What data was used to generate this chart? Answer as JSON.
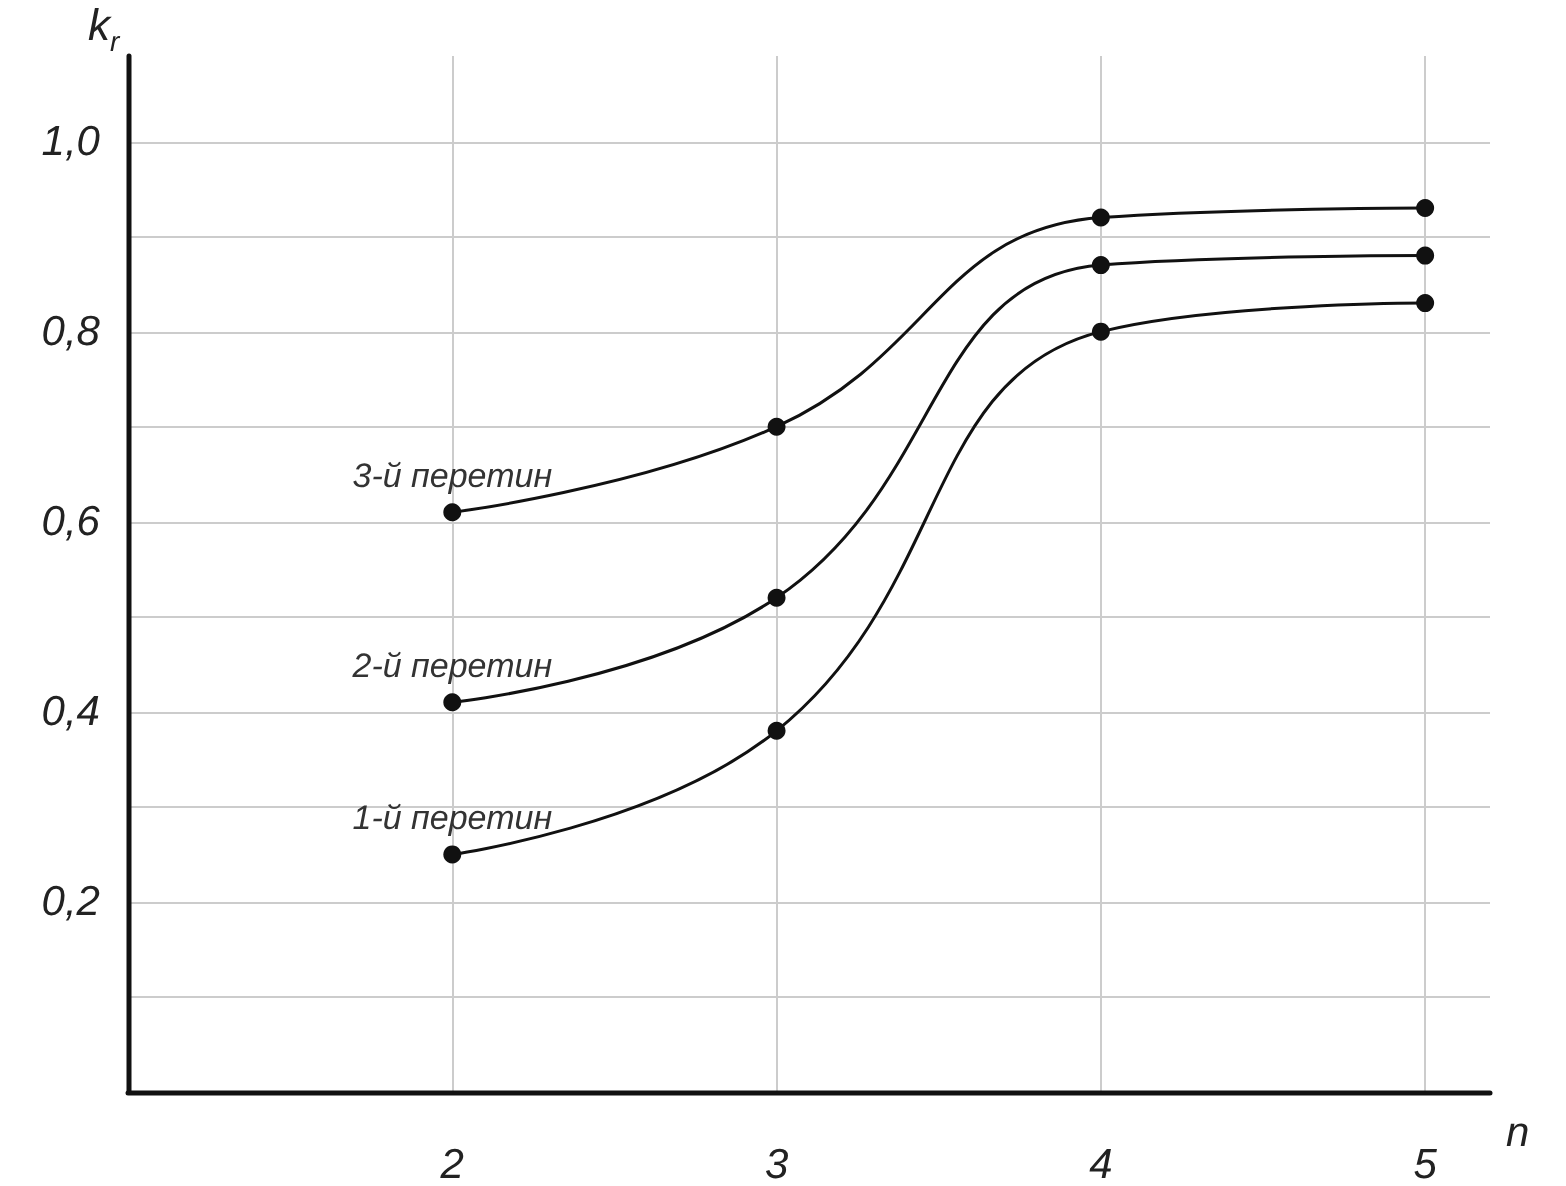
{
  "chart_data": {
    "type": "line",
    "xlabel": "n",
    "ylabel": "k$_{r}$",
    "x": [
      2,
      3,
      4,
      5
    ],
    "series": [
      {
        "name": "1-й перетин",
        "color": "#111111",
        "values": [
          0.25,
          0.38,
          0.8,
          0.83
        ]
      },
      {
        "name": "2-й перетин",
        "color": "#111111",
        "values": [
          0.41,
          0.52,
          0.87,
          0.88
        ]
      },
      {
        "name": "3-й перетин",
        "color": "#111111",
        "values": [
          0.61,
          0.7,
          0.92,
          0.93
        ]
      }
    ],
    "xlim": [
      1,
      5.2
    ],
    "xticks": [
      2,
      3,
      4,
      5
    ],
    "ylim": [
      0,
      1.09
    ],
    "yticks": [
      {
        "value": 0.1,
        "label": null
      },
      {
        "value": 0.2,
        "label": "0,2"
      },
      {
        "value": 0.3,
        "label": null
      },
      {
        "value": 0.4,
        "label": "0,4"
      },
      {
        "value": 0.5,
        "label": null
      },
      {
        "value": 0.6,
        "label": "0,6"
      },
      {
        "value": 0.7,
        "label": null
      },
      {
        "value": 0.8,
        "label": "0,8"
      },
      {
        "value": 0.9,
        "label": null
      },
      {
        "value": 1.0,
        "label": "1,0"
      }
    ],
    "grid": true,
    "marker": "circle",
    "line_style": "solid",
    "legend": false
  }
}
